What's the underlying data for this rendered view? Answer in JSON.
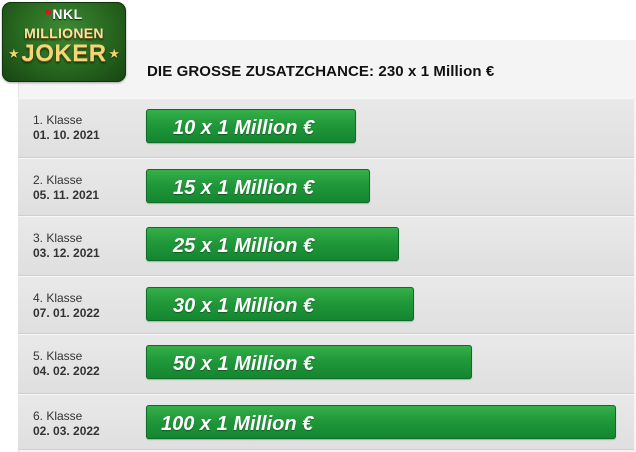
{
  "logo": {
    "brand": "NKL",
    "line1": "MILLIONEN",
    "line2": "JOKER",
    "star": "★"
  },
  "headline": "DIE GROSSE ZUSATZCHANCE: 230 x 1 Million €",
  "colors": {
    "bar_green": "#21983a",
    "logo_green": "#27661f",
    "logo_gold": "#f4d679",
    "row_bg": "#e4e4e4"
  },
  "chart_data": {
    "type": "bar",
    "orientation": "horizontal",
    "unit_label": "x 1 Million €",
    "categories": [
      {
        "klasse": "1. Klasse",
        "datum": "01. 10. 2021"
      },
      {
        "klasse": "2. Klasse",
        "datum": "05. 11. 2021"
      },
      {
        "klasse": "3. Klasse",
        "datum": "03. 12. 2021"
      },
      {
        "klasse": "4. Klasse",
        "datum": "07. 01. 2022"
      },
      {
        "klasse": "5. Klasse",
        "datum": "04. 02. 2022"
      },
      {
        "klasse": "6. Klasse",
        "datum": "02. 03. 2022"
      }
    ],
    "values": [
      10,
      15,
      25,
      30,
      50,
      100
    ],
    "labels": [
      "10 x 1 Million €",
      "15 x 1 Million €",
      "25 x 1 Million €",
      "30 x 1 Million €",
      "50 x 1 Million €",
      "100 x 1 Million €"
    ]
  }
}
